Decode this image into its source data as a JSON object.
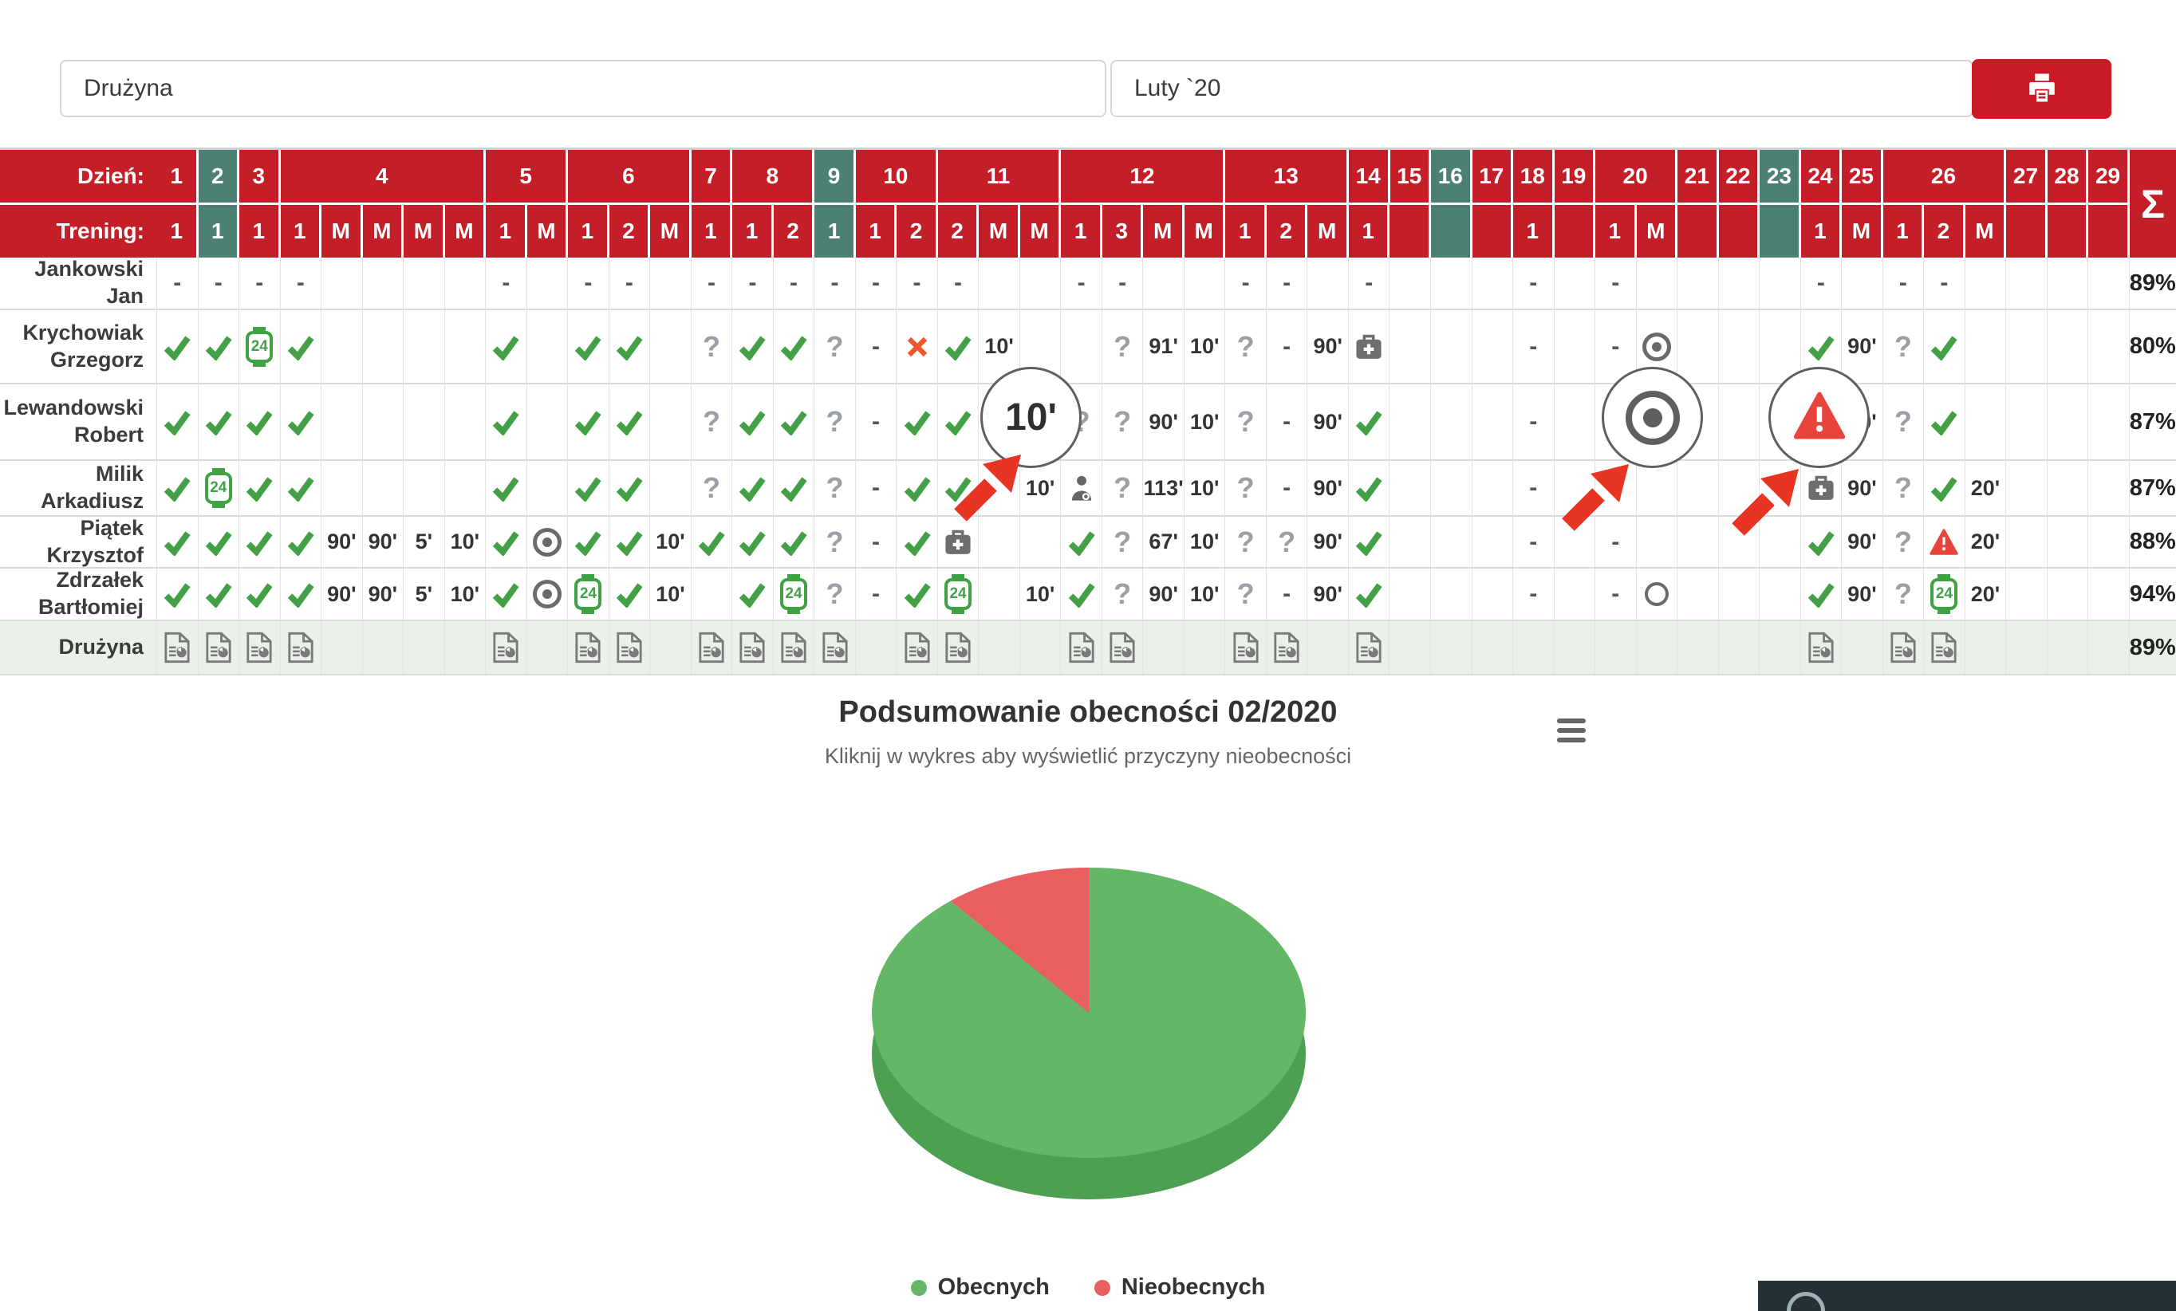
{
  "toolbar": {
    "team_input": "Drużyna",
    "month_input": "Luty `20",
    "print_icon": "printer-icon"
  },
  "table": {
    "day_label": "Dzień:",
    "training_label": "Trening:",
    "sum_symbol": "Σ",
    "days": [
      {
        "day": "1",
        "span": 1
      },
      {
        "day": "2",
        "span": 1,
        "weekend": true
      },
      {
        "day": "3",
        "span": 1
      },
      {
        "day": "4",
        "span": 5
      },
      {
        "day": "5",
        "span": 2
      },
      {
        "day": "6",
        "span": 3
      },
      {
        "day": "7",
        "span": 1
      },
      {
        "day": "8",
        "span": 2
      },
      {
        "day": "9",
        "span": 1,
        "weekend": true
      },
      {
        "day": "10",
        "span": 2
      },
      {
        "day": "11",
        "span": 3
      },
      {
        "day": "12",
        "span": 4
      },
      {
        "day": "13",
        "span": 3
      },
      {
        "day": "14",
        "span": 1
      },
      {
        "day": "15",
        "span": 1
      },
      {
        "day": "16",
        "span": 1,
        "weekend": true
      },
      {
        "day": "17",
        "span": 1
      },
      {
        "day": "18",
        "span": 1
      },
      {
        "day": "19",
        "span": 1
      },
      {
        "day": "20",
        "span": 2
      },
      {
        "day": "21",
        "span": 1
      },
      {
        "day": "22",
        "span": 1
      },
      {
        "day": "23",
        "span": 1,
        "weekend": true
      },
      {
        "day": "24",
        "span": 1
      },
      {
        "day": "25",
        "span": 1
      },
      {
        "day": "26",
        "span": 3
      },
      {
        "day": "27",
        "span": 1
      },
      {
        "day": "28",
        "span": 1
      },
      {
        "day": "29",
        "span": 1
      }
    ],
    "trainings": [
      "1",
      "1",
      "1",
      "1",
      "M",
      "M",
      "M",
      "M",
      "1",
      "M",
      "1",
      "2",
      "M",
      "1",
      "1",
      "2",
      "1",
      "1",
      "2",
      "2",
      "M",
      "M",
      "1",
      "3",
      "M",
      "M",
      "1",
      "2",
      "M",
      "1",
      "",
      "",
      "",
      "1",
      "",
      "1",
      "M",
      "",
      "",
      "",
      "1",
      "M",
      "1",
      "2",
      "M",
      "",
      "",
      ""
    ],
    "weekend_cols": [
      1,
      16,
      31,
      39
    ],
    "rows": [
      {
        "name": "Jankowski Jan",
        "pct": "89%",
        "cells": [
          "-",
          "-",
          "-",
          "-",
          "",
          "",
          "",
          "",
          "-",
          "",
          "-",
          "-",
          "",
          "-",
          "-",
          "-",
          "-",
          "-",
          "-",
          "-",
          "",
          "",
          "-",
          "-",
          "",
          "",
          "-",
          "-",
          "",
          "-",
          "",
          "",
          "",
          "-",
          "",
          "-",
          "",
          "",
          "",
          "",
          "-",
          "",
          "-",
          "-",
          "",
          "",
          "",
          ""
        ]
      },
      {
        "name": "Krychowiak Grzegorz",
        "pct": "80%",
        "cells": [
          "chk",
          "chk",
          "w24",
          "chk",
          "",
          "",
          "",
          "",
          "chk",
          "",
          "chk",
          "chk",
          "",
          "q",
          "chk",
          "chk",
          "q",
          "-",
          "x",
          "chk",
          "10'",
          "",
          "",
          "q",
          "91'",
          "10'",
          "q",
          "-",
          "90'",
          "med",
          "",
          "",
          "",
          "-",
          "",
          "-",
          "tgt",
          "",
          "",
          "",
          "chk",
          "90'",
          "q",
          "chk",
          "",
          "",
          "",
          ""
        ]
      },
      {
        "name": "Lewandowski Robert",
        "pct": "87%",
        "cells": [
          "chk",
          "chk",
          "chk",
          "chk",
          "",
          "",
          "",
          "",
          "chk",
          "",
          "chk",
          "chk",
          "",
          "q",
          "chk",
          "chk",
          "q",
          "-",
          "chk",
          "chk",
          "",
          "",
          "q",
          "q",
          "90'",
          "10'",
          "q",
          "-",
          "90'",
          "chk",
          "",
          "",
          "",
          "-",
          "",
          "",
          "",
          "",
          "",
          "",
          "",
          "90'",
          "q",
          "chk",
          "",
          "",
          "",
          ""
        ]
      },
      {
        "name": "Milik Arkadiusz",
        "pct": "87%",
        "cells": [
          "chk",
          "w24",
          "chk",
          "chk",
          "",
          "",
          "",
          "",
          "chk",
          "",
          "chk",
          "chk",
          "",
          "q",
          "chk",
          "chk",
          "q",
          "-",
          "chk",
          "chk",
          "",
          "10'",
          "doc",
          "q",
          "113'",
          "10'",
          "q",
          "-",
          "90'",
          "chk",
          "",
          "",
          "",
          "-",
          "",
          "",
          "",
          "",
          "",
          "",
          "med",
          "90'",
          "q",
          "chk",
          "20'",
          "",
          "",
          ""
        ]
      },
      {
        "name": "Piątek Krzysztof",
        "pct": "88%",
        "cells": [
          "chk",
          "chk",
          "chk",
          "chk",
          "90'",
          "90'",
          "5'",
          "10'",
          "chk",
          "tgt",
          "chk",
          "chk",
          "10'",
          "chk",
          "chk",
          "chk",
          "q",
          "-",
          "chk",
          "med",
          "",
          "",
          "chk",
          "q",
          "67'",
          "10'",
          "q",
          "q",
          "90'",
          "chk",
          "",
          "",
          "",
          "-",
          "",
          "-",
          "",
          "",
          "",
          "",
          "chk",
          "90'",
          "q",
          "warn",
          "20'",
          "",
          "",
          ""
        ]
      },
      {
        "name": "Zdrzałek Bartłomiej",
        "pct": "94%",
        "cells": [
          "chk",
          "chk",
          "chk",
          "chk",
          "90'",
          "90'",
          "5'",
          "10'",
          "chk",
          "tgt",
          "w24",
          "chk",
          "10'",
          "",
          "chk",
          "w24",
          "q",
          "-",
          "chk",
          "w24",
          "",
          "10'",
          "chk",
          "q",
          "90'",
          "10'",
          "q",
          "-",
          "90'",
          "chk",
          "",
          "",
          "",
          "-",
          "",
          "-",
          "circ",
          "",
          "",
          "",
          "chk",
          "90'",
          "q",
          "w24",
          "20'",
          "",
          "",
          ""
        ]
      }
    ],
    "team_row": {
      "name": "Drużyna",
      "pct": "89%",
      "icon_cols": [
        0,
        1,
        2,
        3,
        8,
        10,
        11,
        13,
        14,
        15,
        16,
        18,
        19,
        22,
        23,
        26,
        27,
        29,
        40,
        42,
        43
      ],
      "icon": "report-chart-icon"
    }
  },
  "callouts": [
    {
      "type": "time",
      "label": "10'"
    },
    {
      "type": "target"
    },
    {
      "type": "warning"
    }
  ],
  "chart_data": {
    "type": "pie",
    "title": "Podsumowanie obecności 02/2020",
    "subtitle": "Kliknij w wykres aby wyświetlić przyczyny nieobecności",
    "series": [
      {
        "name": "Obecnych",
        "value": 89,
        "color": "#64b766",
        "side_color": "#4d9f51"
      },
      {
        "name": "Nieobecnych",
        "value": 11,
        "color": "#e95f5f",
        "side_color": "#c94b4b"
      }
    ],
    "legend_position": "bottom",
    "style": "3d-pie"
  },
  "colors": {
    "accent_red": "#c41f28",
    "weekend_teal": "#4d8074",
    "present_green": "#43a047",
    "absent_x": "#f0552d",
    "warning_red": "#e8433c",
    "team_row_bg": "#e9f1e9",
    "arrow_red": "#e73423"
  }
}
